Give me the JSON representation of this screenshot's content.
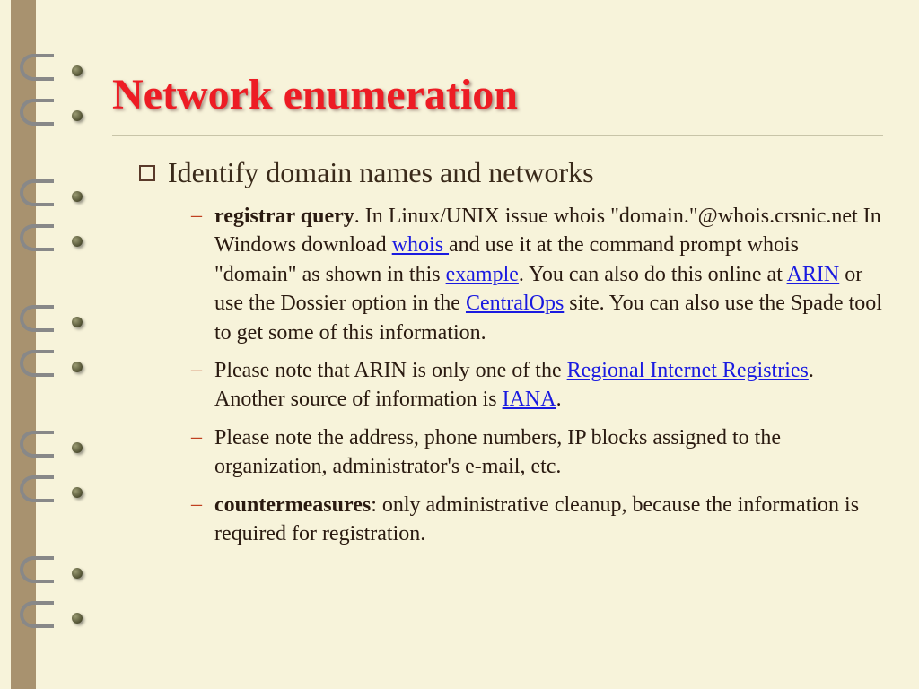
{
  "title": "Network enumeration",
  "main_bullet": "Identify domain names and networks",
  "items": [
    {
      "bold": "registrar query",
      "p0": ". In Linux/UNIX issue whois \"domain.\"@whois.crsnic.net In Windows download ",
      "l0": "whois ",
      "p1": " and use it at the command prompt whois \"domain\" as shown in this ",
      "l1": "example",
      "p2": ". You can also do this online at ",
      "l2": "ARIN",
      "p3": " or use the Dossier option in the ",
      "l3": "CentralOps",
      "p4": " site. You can also use the Spade  tool to get some of this information."
    },
    {
      "p0": "Please note that ARIN is only one of the ",
      "l0": "Regional Internet Registries",
      "p1": ".  Another source of information is ",
      "l1": "IANA",
      "p2": "."
    },
    {
      "p0": "Please note the address, phone numbers, IP blocks assigned to the organization, administrator's e-mail, etc."
    },
    {
      "bold": "countermeasures",
      "p0": ": only administrative cleanup, because the information is required for registration."
    }
  ],
  "colors": {
    "background": "#f7f3da",
    "title": "#ed1c24",
    "binding": "#a8926f",
    "dash": "#c04020",
    "link": "#1a1ae0",
    "hr": "#c8c4a8"
  }
}
